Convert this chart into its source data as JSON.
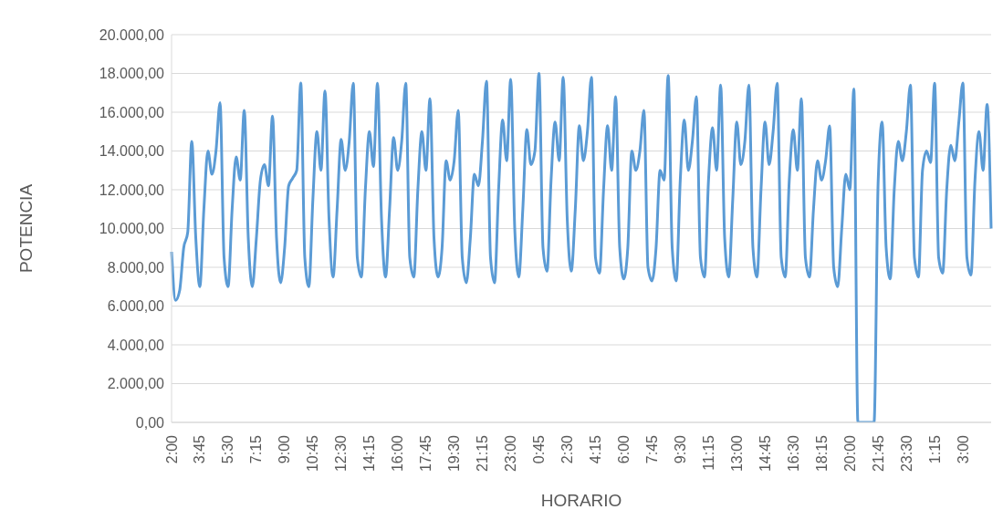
{
  "chart_data": {
    "type": "line",
    "xlabel": "HORARIO",
    "ylabel": "POTENCIA",
    "color": "#5b9bd5",
    "grid": "y",
    "ylim": [
      0,
      20000
    ],
    "yticks": [
      {
        "value": 0,
        "label": "0,00"
      },
      {
        "value": 2000,
        "label": "2.000,00"
      },
      {
        "value": 4000,
        "label": "4.000,00"
      },
      {
        "value": 6000,
        "label": "6.000,00"
      },
      {
        "value": 8000,
        "label": "8.000,00"
      },
      {
        "value": 10000,
        "label": "10.000,00"
      },
      {
        "value": 12000,
        "label": "12.000,00"
      },
      {
        "value": 14000,
        "label": "14.000,00"
      },
      {
        "value": 16000,
        "label": "16.000,00"
      },
      {
        "value": 18000,
        "label": "18.000,00"
      },
      {
        "value": 20000,
        "label": "20.000,00"
      }
    ],
    "categories": [
      "2:00",
      null,
      null,
      null,
      null,
      null,
      null,
      "3:45",
      null,
      null,
      null,
      null,
      null,
      null,
      "5:30",
      null,
      null,
      null,
      null,
      null,
      null,
      "7:15",
      null,
      null,
      null,
      null,
      null,
      null,
      "9:00",
      null,
      null,
      null,
      null,
      null,
      null,
      "10:45",
      null,
      null,
      null,
      null,
      null,
      null,
      "12:30",
      null,
      null,
      null,
      null,
      null,
      null,
      "14:15",
      null,
      null,
      null,
      null,
      null,
      null,
      "16:00",
      null,
      null,
      null,
      null,
      null,
      null,
      "17:45",
      null,
      null,
      null,
      null,
      null,
      null,
      "19:30",
      null,
      null,
      null,
      null,
      null,
      null,
      "21:15",
      null,
      null,
      null,
      null,
      null,
      null,
      "23:00",
      null,
      null,
      null,
      null,
      null,
      null,
      "0:45",
      null,
      null,
      null,
      null,
      null,
      null,
      "2:30",
      null,
      null,
      null,
      null,
      null,
      null,
      "4:15",
      null,
      null,
      null,
      null,
      null,
      null,
      "6:00",
      null,
      null,
      null,
      null,
      null,
      null,
      "7:45",
      null,
      null,
      null,
      null,
      null,
      null,
      "9:30",
      null,
      null,
      null,
      null,
      null,
      null,
      "11:15",
      null,
      null,
      null,
      null,
      null,
      null,
      "13:00",
      null,
      null,
      null,
      null,
      null,
      null,
      "14:45",
      null,
      null,
      null,
      null,
      null,
      null,
      "16:30",
      null,
      null,
      null,
      null,
      null,
      null,
      "18:15",
      null,
      null,
      null,
      null,
      null,
      null,
      "20:00",
      null,
      null,
      null,
      null,
      null,
      null,
      "21:45",
      null,
      null,
      null,
      null,
      null,
      null,
      "23:30",
      null,
      null,
      null,
      null,
      null,
      null,
      "1:15",
      null,
      null,
      null,
      null,
      null,
      null,
      "3:00",
      null,
      null,
      null,
      null,
      null,
      null,
      null
    ],
    "values": [
      8800,
      6300,
      6800,
      9000,
      9800,
      14500,
      9500,
      7000,
      11000,
      14000,
      12800,
      14000,
      16500,
      8500,
      7000,
      11000,
      13700,
      12500,
      16100,
      9500,
      7000,
      9500,
      12500,
      13300,
      12200,
      15800,
      9500,
      7200,
      9000,
      12200,
      12600,
      13000,
      17500,
      8500,
      7000,
      11500,
      15000,
      13000,
      17100,
      10500,
      7500,
      11000,
      14600,
      13000,
      14500,
      17500,
      8500,
      7500,
      12000,
      15000,
      13200,
      17500,
      10500,
      7500,
      11000,
      14700,
      13000,
      14500,
      17500,
      8500,
      7500,
      12000,
      15000,
      13000,
      16700,
      9500,
      7500,
      9000,
      13500,
      12500,
      13500,
      16100,
      8500,
      7200,
      9500,
      12800,
      12200,
      14500,
      17600,
      8500,
      7200,
      12000,
      15600,
      13500,
      17700,
      10000,
      7500,
      11000,
      15100,
      13300,
      14000,
      18000,
      9000,
      7800,
      12500,
      15500,
      13500,
      17800,
      10500,
      7800,
      11000,
      15300,
      13500,
      15000,
      17800,
      8500,
      7700,
      12000,
      15300,
      13000,
      16800,
      9000,
      7400,
      9000,
      14000,
      13000,
      14000,
      16100,
      8000,
      7300,
      9000,
      13000,
      12500,
      17900,
      9000,
      7300,
      12500,
      15600,
      13000,
      14500,
      16800,
      8500,
      7500,
      12500,
      15200,
      13000,
      17400,
      9500,
      7500,
      11500,
      15500,
      13300,
      14500,
      17400,
      9000,
      7500,
      12000,
      15500,
      13300,
      15000,
      17500,
      8500,
      7500,
      12500,
      15100,
      13000,
      16700,
      8500,
      7500,
      11000,
      13500,
      12500,
      13500,
      15300,
      8000,
      7000,
      10000,
      12800,
      12000,
      17200,
      0,
      0,
      0,
      0,
      0,
      12300,
      15500,
      9000,
      7400,
      12000,
      14500,
      13500,
      15000,
      17400,
      8500,
      7500,
      13000,
      14000,
      13400,
      17500,
      8500,
      7700,
      12000,
      14300,
      13500,
      15500,
      17500,
      8500,
      7600,
      12500,
      15000,
      13000,
      16400,
      10000
    ]
  }
}
